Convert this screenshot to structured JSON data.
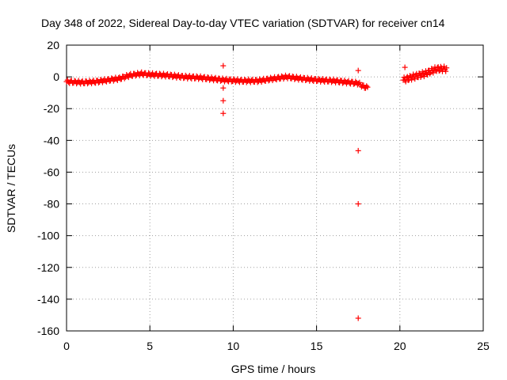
{
  "chart_data": {
    "type": "scatter",
    "title": "Day 348 of 2022, Sidereal Day-to-day VTEC variation (SDTVAR) for receiver cn14",
    "xlabel": "GPS time / hours",
    "ylabel": "SDTVAR / TECUs",
    "xlim": [
      0,
      25
    ],
    "ylim": [
      -160,
      20
    ],
    "grid": true,
    "marker": "+",
    "color": "#ff0000",
    "xticks": [
      0,
      5,
      10,
      15,
      20,
      25
    ],
    "yticks": [
      20,
      0,
      -20,
      -40,
      -60,
      -80,
      -100,
      -120,
      -140,
      -160
    ],
    "series": [
      {
        "name": "SDTVAR",
        "trend": [
          [
            0.0,
            -3
          ],
          [
            1.0,
            -3.5
          ],
          [
            1.8,
            -3
          ],
          [
            2.5,
            -2
          ],
          [
            3.2,
            -1
          ],
          [
            3.8,
            1
          ],
          [
            4.5,
            2
          ],
          [
            5.0,
            1.5
          ],
          [
            6.0,
            1
          ],
          [
            7.0,
            0
          ],
          [
            8.0,
            -0.5
          ],
          [
            9.0,
            -1.5
          ],
          [
            9.5,
            -2
          ],
          [
            10.5,
            -2.5
          ],
          [
            11.5,
            -2.5
          ],
          [
            12.5,
            -1
          ],
          [
            13.2,
            0
          ],
          [
            14.0,
            -1
          ],
          [
            15.0,
            -2
          ],
          [
            16.0,
            -2.5
          ],
          [
            17.0,
            -3.5
          ],
          [
            17.5,
            -4
          ],
          [
            17.8,
            -6
          ],
          [
            18.1,
            -7
          ]
        ],
        "trend2": [
          [
            20.2,
            -2
          ],
          [
            20.8,
            0
          ],
          [
            21.5,
            2
          ],
          [
            22.2,
            5
          ],
          [
            22.8,
            5
          ]
        ],
        "outliers": [
          [
            9.4,
            7
          ],
          [
            9.4,
            -7
          ],
          [
            9.4,
            -15
          ],
          [
            9.4,
            -23
          ],
          [
            17.5,
            4
          ],
          [
            17.5,
            -46.5
          ],
          [
            17.5,
            -80
          ],
          [
            17.5,
            -152
          ],
          [
            20.3,
            6
          ]
        ]
      }
    ]
  }
}
